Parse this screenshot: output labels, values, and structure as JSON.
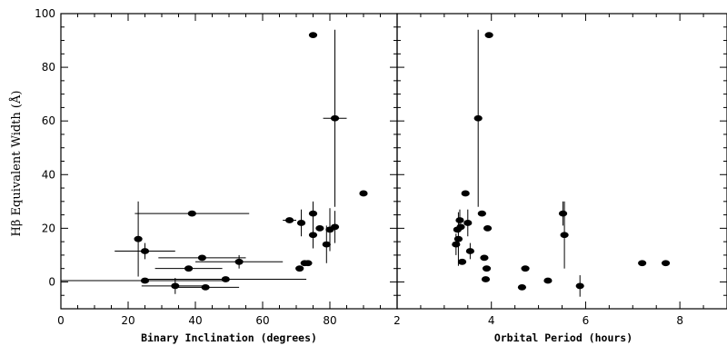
{
  "chart_data": [
    {
      "type": "scatter",
      "xlabel": "Binary Inclination (degrees)",
      "ylabel": "Hβ Equivalent Width (Å)",
      "xlim": [
        0,
        100
      ],
      "ylim": [
        -10,
        100
      ],
      "xticks": [
        0,
        20,
        40,
        60,
        80
      ],
      "yticks": [
        0,
        20,
        40,
        60,
        80,
        100
      ],
      "points": [
        {
          "x": 23,
          "y": 16,
          "xerr": 0,
          "yerr": 14
        },
        {
          "x": 25,
          "y": 11.5,
          "xerr": 9,
          "yerr": 3
        },
        {
          "x": 25,
          "y": 0.5,
          "xerr": 25,
          "yerr": 0
        },
        {
          "x": 39,
          "y": 25.5,
          "xerr": 17,
          "yerr": 0
        },
        {
          "x": 42,
          "y": 9,
          "xerr": 13,
          "yerr": 0
        },
        {
          "x": 38,
          "y": 5,
          "xerr": 10,
          "yerr": 0
        },
        {
          "x": 34,
          "y": -1.5,
          "xerr": 10,
          "yerr": 3
        },
        {
          "x": 43,
          "y": -2,
          "xerr": 10,
          "yerr": 0
        },
        {
          "x": 49,
          "y": 1,
          "xerr": 24,
          "yerr": 0
        },
        {
          "x": 53,
          "y": 7.5,
          "xerr": 13,
          "yerr": 2.5
        },
        {
          "x": 68,
          "y": 23,
          "xerr": 2,
          "yerr": 0
        },
        {
          "x": 71,
          "y": 5,
          "xerr": 0,
          "yerr": 0
        },
        {
          "x": 71.5,
          "y": 22,
          "xerr": 0,
          "yerr": 5
        },
        {
          "x": 72.5,
          "y": 7,
          "xerr": 0,
          "yerr": 0
        },
        {
          "x": 73.5,
          "y": 7,
          "xerr": 0,
          "yerr": 0
        },
        {
          "x": 75,
          "y": 25.5,
          "xerr": 0,
          "yerr": 4.5
        },
        {
          "x": 75,
          "y": 17.5,
          "xerr": 0,
          "yerr": 5
        },
        {
          "x": 75,
          "y": 92,
          "xerr": 0,
          "yerr": 0
        },
        {
          "x": 77,
          "y": 20,
          "xerr": 0,
          "yerr": 0
        },
        {
          "x": 79,
          "y": 14,
          "xerr": 0,
          "yerr": 7
        },
        {
          "x": 80,
          "y": 19.5,
          "xerr": 0,
          "yerr": 8
        },
        {
          "x": 81.5,
          "y": 61,
          "xerr": 3.5,
          "yerr": 33
        },
        {
          "x": 81.5,
          "y": 20.5,
          "xerr": 0,
          "yerr": 6
        },
        {
          "x": 90,
          "y": 33,
          "xerr": 0,
          "yerr": 0
        }
      ]
    },
    {
      "type": "scatter",
      "xlabel": "Orbital Period (hours)",
      "xlim": [
        2,
        9
      ],
      "ylim": [
        -10,
        100
      ],
      "xticks": [
        2,
        4,
        6,
        8
      ],
      "points": [
        {
          "x": 3.25,
          "y": 14,
          "xerr": 0,
          "yerr": 4
        },
        {
          "x": 3.28,
          "y": 19.5,
          "xerr": 0,
          "yerr": 0
        },
        {
          "x": 3.3,
          "y": 16,
          "xerr": 0,
          "yerr": 10
        },
        {
          "x": 3.33,
          "y": 23,
          "xerr": 0,
          "yerr": 4
        },
        {
          "x": 3.35,
          "y": 20.5,
          "xerr": 0,
          "yerr": 0
        },
        {
          "x": 3.38,
          "y": 7.5,
          "xerr": 0,
          "yerr": 0
        },
        {
          "x": 3.45,
          "y": 33,
          "xerr": 0,
          "yerr": 0
        },
        {
          "x": 3.5,
          "y": 22,
          "xerr": 0,
          "yerr": 5
        },
        {
          "x": 3.55,
          "y": 11.5,
          "xerr": 0,
          "yerr": 3
        },
        {
          "x": 3.72,
          "y": 61,
          "xerr": 0,
          "yerr": 33
        },
        {
          "x": 3.8,
          "y": 25.5,
          "xerr": 0,
          "yerr": 0
        },
        {
          "x": 3.85,
          "y": 9,
          "xerr": 0,
          "yerr": 0
        },
        {
          "x": 3.9,
          "y": 5,
          "xerr": 0,
          "yerr": 0
        },
        {
          "x": 3.88,
          "y": 1,
          "xerr": 0,
          "yerr": 0
        },
        {
          "x": 3.92,
          "y": 20,
          "xerr": 0,
          "yerr": 0
        },
        {
          "x": 3.95,
          "y": 92,
          "xerr": 0,
          "yerr": 0
        },
        {
          "x": 4.65,
          "y": -2,
          "xerr": 0,
          "yerr": 0
        },
        {
          "x": 4.72,
          "y": 5,
          "xerr": 0,
          "yerr": 0
        },
        {
          "x": 5.2,
          "y": 0.5,
          "xerr": 0,
          "yerr": 0
        },
        {
          "x": 5.52,
          "y": 25.5,
          "xerr": 0,
          "yerr": 4.5
        },
        {
          "x": 5.55,
          "y": 17.5,
          "xerr": 0,
          "yerr": 12.5
        },
        {
          "x": 5.88,
          "y": -1.5,
          "xerr": 0,
          "yerr": 4
        },
        {
          "x": 7.2,
          "y": 7,
          "xerr": 0,
          "yerr": 0
        },
        {
          "x": 7.7,
          "y": 7,
          "xerr": 0,
          "yerr": 0
        }
      ]
    }
  ]
}
